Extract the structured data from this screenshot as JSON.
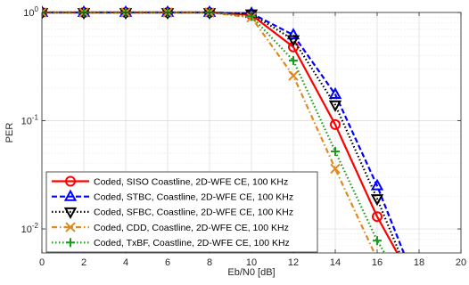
{
  "chart_data": {
    "type": "line",
    "xlabel": "Eb/N0 [dB]",
    "ylabel": "PER",
    "xlim": [
      0,
      20
    ],
    "ylim": [
      0.006,
      1.0
    ],
    "yscale": "log",
    "xticks": [
      0,
      2,
      4,
      6,
      8,
      10,
      12,
      14,
      16,
      18,
      20
    ],
    "xtick_labels": [
      "0",
      "2",
      "4",
      "6",
      "8",
      "10",
      "12",
      "14",
      "16",
      "18",
      "20"
    ],
    "yticks": [
      {
        "value": 1,
        "base": "10",
        "exp": "0"
      },
      {
        "value": 0.1,
        "base": "10",
        "exp": "-1"
      },
      {
        "value": 0.01,
        "base": "10",
        "exp": "-2"
      }
    ],
    "grid": true,
    "legend_position": "bottom-left",
    "series": [
      {
        "name": "Coded, SISO Coastline, 2D-WFE CE, 100 KHz",
        "color": "#ff0000",
        "dash": "solid",
        "marker": "circle",
        "x": [
          0,
          2,
          4,
          6,
          8,
          10,
          12,
          14,
          16,
          17
        ],
        "y": [
          1,
          1,
          1,
          1,
          1,
          0.95,
          0.48,
          0.092,
          0.013,
          0.0058
        ]
      },
      {
        "name": "Coded, STBC, Coastline, 2D-WFE CE, 100 KHz",
        "color": "#0000ff",
        "dash": "dashed",
        "marker": "triangle-up",
        "x": [
          0,
          2,
          4,
          6,
          8,
          10,
          12,
          14,
          16,
          17.3
        ],
        "y": [
          1,
          1,
          1,
          1,
          1,
          0.98,
          0.62,
          0.175,
          0.025,
          0.0058
        ]
      },
      {
        "name": "Coded, SFBC, Coastline, 2D-WFE CE, 100 KHz",
        "color": "#000000",
        "dash": "dotted",
        "marker": "triangle-down",
        "x": [
          0,
          2,
          4,
          6,
          8,
          10,
          12,
          14,
          16,
          17.1
        ],
        "y": [
          1,
          1,
          1,
          1,
          1,
          0.97,
          0.56,
          0.14,
          0.019,
          0.0058
        ]
      },
      {
        "name": "Coded, CDD, Coastline, 2D-WFE CE, 100 KHz",
        "color": "#e08a1e",
        "dash": "dashdot",
        "marker": "x",
        "x": [
          0,
          2,
          4,
          6,
          8,
          10,
          12,
          14,
          15.9
        ],
        "y": [
          1,
          1,
          1,
          1,
          1,
          0.9,
          0.26,
          0.036,
          0.0058
        ]
      },
      {
        "name": "Coded, TxBF, Coastline, 2D-WFE CE, 100 KHz",
        "color": "#1a9a1a",
        "dash": "dotted",
        "marker": "plus",
        "x": [
          0,
          2,
          4,
          6,
          8,
          10,
          12,
          14,
          16,
          16.4
        ],
        "y": [
          1,
          1,
          1,
          1,
          1,
          0.92,
          0.36,
          0.052,
          0.0078,
          0.0058
        ]
      }
    ]
  }
}
